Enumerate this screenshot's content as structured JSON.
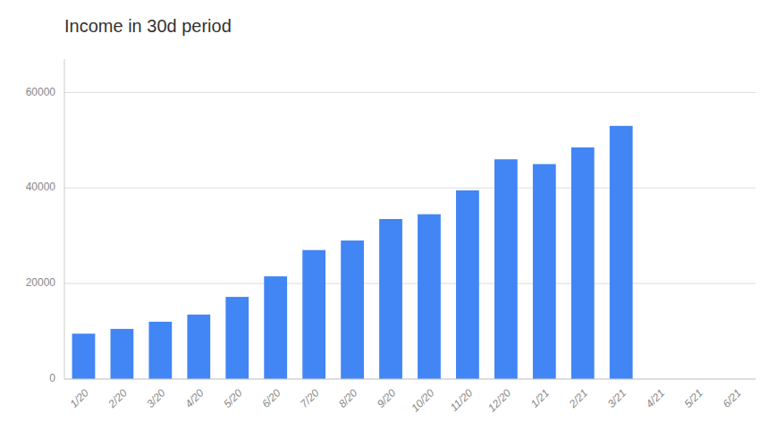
{
  "chart_data": {
    "type": "bar",
    "title": "Income in 30d period",
    "categories": [
      "1/20",
      "2/20",
      "3/20",
      "4/20",
      "5/20",
      "6/20",
      "7/20",
      "8/20",
      "9/20",
      "10/20",
      "11/20",
      "12/20",
      "1/21",
      "2/21",
      "3/21",
      "4/21",
      "5/21",
      "6/21"
    ],
    "values": [
      9500,
      10500,
      12000,
      13500,
      17200,
      21500,
      27000,
      29000,
      33500,
      34500,
      39500,
      46000,
      45000,
      48500,
      53000,
      0,
      0,
      0
    ],
    "color": "#4285F4",
    "ylim": [
      0,
      67000
    ],
    "yticks": [
      0,
      20000,
      40000,
      60000
    ],
    "grid": true
  }
}
